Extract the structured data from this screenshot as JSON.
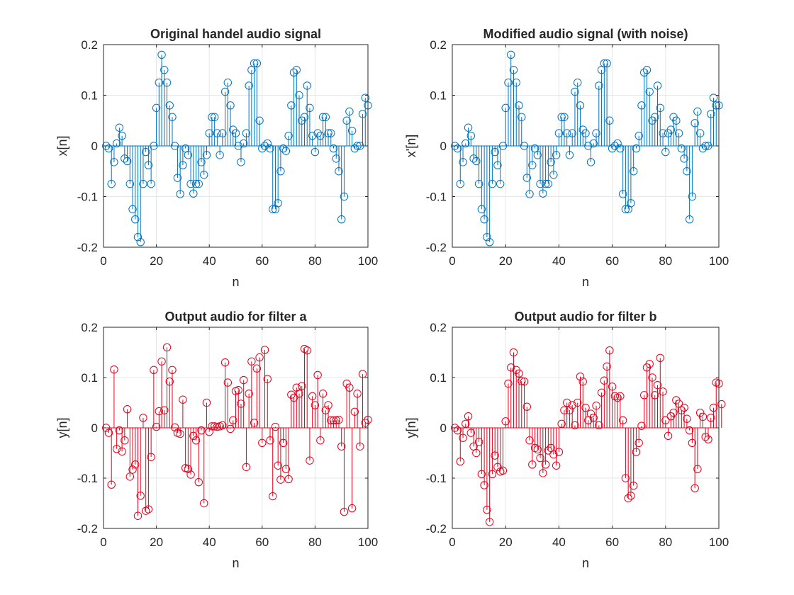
{
  "chart_data": [
    {
      "type": "stem",
      "title": "Original handel audio signal",
      "xlabel": "n",
      "ylabel": "x[n]",
      "xlim": [
        0,
        100
      ],
      "ylim": [
        -0.2,
        0.2
      ],
      "xticks": [
        "0",
        "20",
        "40",
        "60",
        "80",
        "100"
      ],
      "yticks": [
        "-0.2",
        "-0.1",
        "0",
        "0.1",
        "0.2"
      ],
      "grid": true,
      "color": "#0072BD",
      "x_start": 1,
      "values": [
        0,
        -0.005,
        -0.075,
        -0.032,
        0.005,
        0.036,
        0.02,
        -0.025,
        -0.03,
        -0.075,
        -0.125,
        -0.145,
        -0.18,
        -0.19,
        -0.075,
        -0.012,
        -0.038,
        -0.075,
        0,
        0.075,
        0.125,
        0.18,
        0.15,
        0.125,
        0.08,
        0.057,
        0,
        -0.063,
        -0.095,
        -0.038,
        -0.005,
        -0.018,
        -0.075,
        -0.094,
        -0.075,
        -0.075,
        -0.032,
        -0.057,
        -0.018,
        0.025,
        0.057,
        0.057,
        0.025,
        -0.018,
        0.025,
        0.107,
        0.125,
        0.08,
        0.032,
        0.025,
        0,
        -0.032,
        0.005,
        0.025,
        0.119,
        0.15,
        0.163,
        0.163,
        0.05,
        -0.005,
        0,
        0.005,
        -0.005,
        -0.125,
        -0.125,
        -0.113,
        -0.05,
        -0.005,
        -0.01,
        0.02,
        0.08,
        0.145,
        0.15,
        0.1,
        0.05,
        0.057,
        0.119,
        0.075,
        0.02,
        -0.012,
        0.025,
        0.02,
        0.057,
        0.057,
        0.025,
        0.025,
        -0.005,
        -0.025,
        -0.05,
        -0.145,
        -0.1,
        0.05,
        0.068,
        0.03,
        -0.005,
        0,
        0,
        0.063,
        0.095,
        0.08
      ]
    },
    {
      "type": "stem",
      "title": "Modified audio signal (with noise)",
      "xlabel": "n",
      "ylabel": "x'[n]",
      "xlim": [
        0,
        100
      ],
      "ylim": [
        -0.2,
        0.2
      ],
      "xticks": [
        "0",
        "20",
        "40",
        "60",
        "80",
        "100"
      ],
      "yticks": [
        "-0.2",
        "-0.1",
        "0",
        "0.1",
        "0.2"
      ],
      "grid": true,
      "color": "#0072BD",
      "x_start": 1,
      "values": [
        0,
        -0.005,
        -0.075,
        -0.032,
        0.005,
        0.036,
        0.02,
        -0.025,
        -0.03,
        -0.075,
        -0.125,
        -0.145,
        -0.18,
        -0.19,
        -0.075,
        -0.012,
        -0.038,
        -0.075,
        0,
        0.075,
        0.125,
        0.18,
        0.15,
        0.125,
        0.08,
        0.057,
        0,
        -0.063,
        -0.095,
        -0.038,
        -0.005,
        -0.018,
        -0.075,
        -0.094,
        -0.075,
        -0.075,
        -0.032,
        -0.057,
        -0.018,
        0.025,
        0.057,
        0.057,
        0.025,
        -0.018,
        0.025,
        0.107,
        0.125,
        0.08,
        0.032,
        0.025,
        0,
        -0.032,
        0.005,
        0.025,
        0.119,
        0.15,
        0.163,
        0.163,
        0.05,
        -0.005,
        0,
        0.005,
        -0.005,
        -0.095,
        -0.125,
        -0.125,
        -0.113,
        -0.05,
        -0.005,
        0.02,
        0.08,
        0.145,
        0.15,
        0.107,
        0.05,
        0.057,
        0.119,
        0.075,
        0.025,
        -0.012,
        0.025,
        0.032,
        0.057,
        0.05,
        0.025,
        -0.005,
        -0.025,
        -0.05,
        -0.145,
        -0.1,
        0.045,
        0.068,
        0.025,
        -0.005,
        0,
        0,
        0.063,
        0.095,
        0.08,
        0.08
      ]
    },
    {
      "type": "stem",
      "title": "Output audio for filter a",
      "xlabel": "n",
      "ylabel": "y[n]",
      "xlim": [
        0,
        100
      ],
      "ylim": [
        -0.2,
        0.2
      ],
      "xticks": [
        "0",
        "20",
        "40",
        "60",
        "80",
        "100"
      ],
      "yticks": [
        "-0.2",
        "-0.1",
        "0",
        "0.1",
        "0.2"
      ],
      "grid": true,
      "color": "#E3001B",
      "x_start": 1,
      "values": [
        0,
        -0.01,
        -0.113,
        0.116,
        -0.042,
        -0.005,
        -0.047,
        -0.025,
        0.037,
        -0.097,
        -0.083,
        -0.073,
        -0.175,
        -0.135,
        0.02,
        -0.165,
        -0.162,
        -0.058,
        0.115,
        0.002,
        0.033,
        0.132,
        0.035,
        0.16,
        0.092,
        0.115,
        0.001,
        -0.01,
        -0.012,
        0.056,
        -0.08,
        -0.082,
        -0.093,
        -0.016,
        -0.025,
        -0.108,
        -0.005,
        -0.15,
        0.05,
        -0.008,
        0.003,
        0.003,
        0.002,
        0.003,
        0.005,
        0.13,
        0.09,
        -0.002,
        0.015,
        0.073,
        0.075,
        0.048,
        0.095,
        -0.078,
        0.068,
        0.132,
        0.01,
        0.118,
        0.14,
        -0.03,
        0.155,
        0.097,
        -0.025,
        -0.136,
        0.002,
        -0.075,
        -0.103,
        -0.03,
        -0.082,
        -0.102,
        0.066,
        0.06,
        0.08,
        0.068,
        0.083,
        0.157,
        0.154,
        -0.065,
        0.063,
        0.045,
        0.105,
        -0.025,
        0.068,
        0.035,
        0.045,
        0.015,
        0.015,
        0.015,
        0.016,
        -0.037,
        -0.167,
        0.088,
        0.08,
        -0.16,
        0.032,
        0.068,
        -0.037,
        0.107,
        0.01,
        0.016
      ]
    },
    {
      "type": "stem",
      "title": "Output audio for filter b",
      "xlabel": "n",
      "ylabel": "y[n]",
      "xlim": [
        0,
        100
      ],
      "ylim": [
        -0.2,
        0.2
      ],
      "xticks": [
        "0",
        "20",
        "40",
        "60",
        "80",
        "100"
      ],
      "yticks": [
        "-0.2",
        "-0.1",
        "0",
        "0.1",
        "0.2"
      ],
      "grid": true,
      "color": "#E3001B",
      "x_start": 1,
      "values": [
        0,
        -0.005,
        -0.067,
        -0.02,
        0.008,
        0.023,
        -0.01,
        -0.037,
        -0.05,
        -0.028,
        -0.092,
        -0.114,
        -0.163,
        -0.187,
        -0.092,
        -0.055,
        -0.078,
        -0.087,
        -0.085,
        0.013,
        0.088,
        0.12,
        0.15,
        0.115,
        0.108,
        0.093,
        0.092,
        0.042,
        -0.025,
        -0.073,
        -0.04,
        -0.043,
        -0.06,
        -0.09,
        -0.073,
        -0.045,
        -0.04,
        -0.053,
        -0.075,
        -0.048,
        0.008,
        0.035,
        0.05,
        0.035,
        0.045,
        0.005,
        0.05,
        0.102,
        0.092,
        0.04,
        0.015,
        0.028,
        0.02,
        0.044,
        0.005,
        0.07,
        0.094,
        0.122,
        0.154,
        0.082,
        0.063,
        0.06,
        0.063,
        0.015,
        -0.1,
        -0.14,
        -0.135,
        -0.115,
        -0.048,
        -0.03,
        0.004,
        0.065,
        0.12,
        0.127,
        0.1,
        0.065,
        0.085,
        0.139,
        0.072,
        0.015,
        -0.016,
        0.023,
        0.03,
        0.055,
        0.048,
        0.035,
        0.04,
        0.018,
        -0.005,
        -0.03,
        -0.12,
        -0.082,
        0.03,
        0.022,
        -0.018,
        -0.023,
        0.02,
        0.04,
        0.09,
        0.088,
        0.047
      ]
    }
  ]
}
